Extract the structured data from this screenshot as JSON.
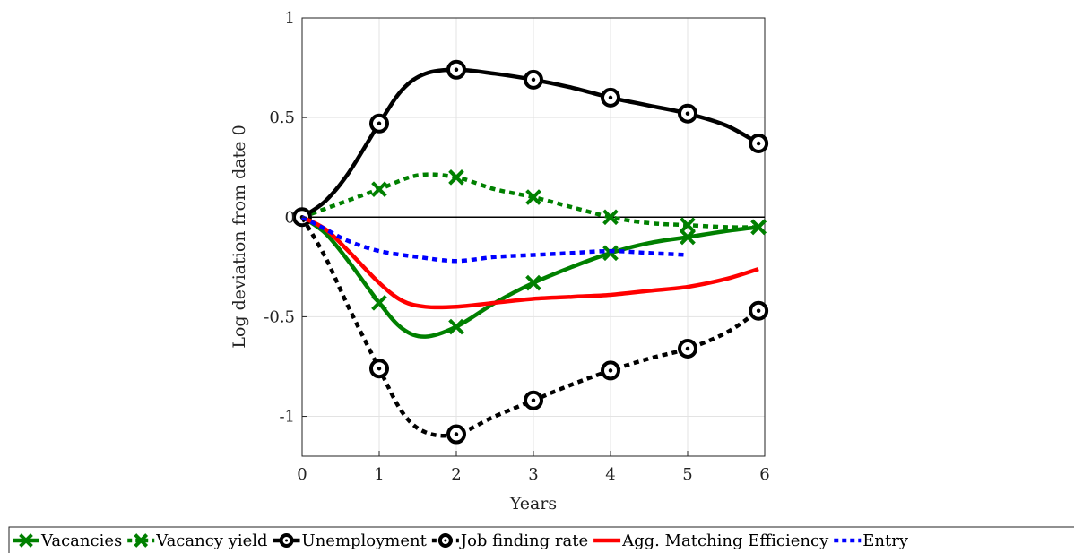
{
  "chart_data": {
    "type": "line",
    "xlabel": "Years",
    "ylabel": "Log deviation from date 0",
    "xlim": [
      0,
      6
    ],
    "ylim": [
      -1.2,
      1
    ],
    "xticks": [
      "0",
      "1",
      "2",
      "3",
      "4",
      "5",
      "6"
    ],
    "yticks": [
      "1",
      "0.5",
      "0",
      "-0.5",
      "-1"
    ],
    "grid": true,
    "legend_position": "bottom",
    "series": [
      {
        "name": "Vacancies",
        "color": "#008000",
        "style": "solid",
        "marker": "x",
        "x": [
          0,
          0.3,
          0.6,
          1,
          1.3,
          1.6,
          2,
          2.5,
          3,
          3.5,
          4,
          4.5,
          5,
          5.5,
          5.92
        ],
        "y": [
          0,
          -0.08,
          -0.22,
          -0.43,
          -0.56,
          -0.6,
          -0.55,
          -0.43,
          -0.33,
          -0.25,
          -0.18,
          -0.13,
          -0.1,
          -0.07,
          -0.05
        ],
        "marker_x": [
          1,
          2,
          3,
          4,
          5,
          5.92
        ],
        "marker_y": [
          -0.43,
          -0.55,
          -0.33,
          -0.18,
          -0.1,
          -0.05
        ]
      },
      {
        "name": "Vacancy yield",
        "color": "#008000",
        "style": "dotted",
        "marker": "x",
        "x": [
          0,
          0.5,
          1,
          1.5,
          2,
          2.5,
          3,
          3.5,
          4,
          4.5,
          5,
          5.5,
          5.92
        ],
        "y": [
          0,
          0.07,
          0.14,
          0.21,
          0.2,
          0.14,
          0.1,
          0.05,
          0.0,
          -0.03,
          -0.04,
          -0.05,
          -0.05
        ],
        "marker_x": [
          1,
          2,
          3,
          4,
          5,
          5.92
        ],
        "marker_y": [
          0.14,
          0.2,
          0.1,
          0.0,
          -0.04,
          -0.05
        ]
      },
      {
        "name": "Unemployment",
        "color": "#000000",
        "style": "solid",
        "marker": "o",
        "x": [
          0,
          0.3,
          0.6,
          1,
          1.3,
          1.6,
          2,
          2.5,
          3,
          3.5,
          4,
          4.5,
          5,
          5.5,
          5.92
        ],
        "y": [
          0,
          0.08,
          0.22,
          0.47,
          0.64,
          0.72,
          0.74,
          0.72,
          0.69,
          0.65,
          0.6,
          0.56,
          0.52,
          0.46,
          0.37
        ],
        "marker_x": [
          0,
          1,
          2,
          3,
          4,
          5,
          5.92
        ],
        "marker_y": [
          0,
          0.47,
          0.74,
          0.69,
          0.6,
          0.52,
          0.37
        ]
      },
      {
        "name": "Job finding rate",
        "color": "#000000",
        "style": "dotted",
        "marker": "o",
        "x": [
          0,
          0.3,
          0.6,
          1,
          1.3,
          1.6,
          2,
          2.5,
          3,
          3.5,
          4,
          4.5,
          5,
          5.5,
          5.92
        ],
        "y": [
          0,
          -0.2,
          -0.45,
          -0.76,
          -0.98,
          -1.08,
          -1.09,
          -1.0,
          -0.92,
          -0.84,
          -0.77,
          -0.71,
          -0.66,
          -0.58,
          -0.47
        ],
        "marker_x": [
          1,
          2,
          3,
          4,
          5,
          5.92
        ],
        "marker_y": [
          -0.76,
          -1.09,
          -0.92,
          -0.77,
          -0.66,
          -0.47
        ]
      },
      {
        "name": "Agg. Matching Efficiency",
        "color": "#ff0000",
        "style": "solid",
        "marker": "none",
        "x": [
          0,
          0.3,
          0.6,
          1,
          1.3,
          1.6,
          2,
          2.5,
          3,
          3.5,
          4,
          4.5,
          5,
          5.5,
          5.92
        ],
        "y": [
          0,
          -0.06,
          -0.17,
          -0.33,
          -0.42,
          -0.45,
          -0.45,
          -0.43,
          -0.41,
          -0.4,
          -0.39,
          -0.37,
          -0.35,
          -0.31,
          -0.26
        ]
      },
      {
        "name": "Entry",
        "color": "#0000ff",
        "style": "dotted",
        "marker": "none",
        "x": [
          0,
          0.3,
          0.6,
          1,
          1.5,
          2,
          2.5,
          3,
          3.5,
          4,
          4.5,
          5
        ],
        "y": [
          0,
          -0.06,
          -0.12,
          -0.17,
          -0.2,
          -0.22,
          -0.2,
          -0.19,
          -0.18,
          -0.17,
          -0.18,
          -0.19
        ]
      }
    ],
    "reference_line": {
      "y": 0,
      "color": "#000000"
    }
  }
}
